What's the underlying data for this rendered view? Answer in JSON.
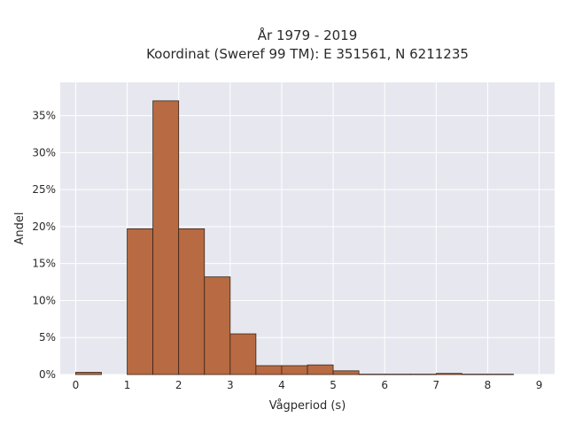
{
  "chart_data": {
    "type": "bar",
    "title_line1": "År 1979 - 2019",
    "title_line2": "Koordinat (Sweref 99 TM): E 351561, N 6211235",
    "xlabel": "Vågperiod (s)",
    "ylabel": "Andel",
    "xlim": [
      -0.3,
      9.3
    ],
    "ylim": [
      0,
      39.5
    ],
    "x_ticks": [
      0,
      1,
      2,
      3,
      4,
      5,
      6,
      7,
      8,
      9
    ],
    "y_ticks": [
      0,
      5,
      10,
      15,
      20,
      25,
      30,
      35
    ],
    "y_tick_suffix": "%",
    "bar_width": 0.5,
    "bars": [
      {
        "x0": 0.0,
        "value": 0.3
      },
      {
        "x0": 1.0,
        "value": 19.7
      },
      {
        "x0": 1.5,
        "value": 37.0
      },
      {
        "x0": 2.0,
        "value": 19.7
      },
      {
        "x0": 2.5,
        "value": 13.2
      },
      {
        "x0": 3.0,
        "value": 5.5
      },
      {
        "x0": 3.5,
        "value": 1.2
      },
      {
        "x0": 4.0,
        "value": 1.2
      },
      {
        "x0": 4.5,
        "value": 1.3
      },
      {
        "x0": 5.0,
        "value": 0.5
      },
      {
        "x0": 5.5,
        "value": 0.05
      },
      {
        "x0": 6.0,
        "value": 0.05
      },
      {
        "x0": 6.5,
        "value": 0.05
      },
      {
        "x0": 7.0,
        "value": 0.15
      },
      {
        "x0": 7.5,
        "value": 0.05
      },
      {
        "x0": 8.0,
        "value": 0.05
      }
    ],
    "grid": true,
    "colors": {
      "bar_fill": "#b86a42",
      "bar_stroke": "#3a2418",
      "plot_bg": "#e7e8ef",
      "grid": "#ffffff"
    }
  }
}
